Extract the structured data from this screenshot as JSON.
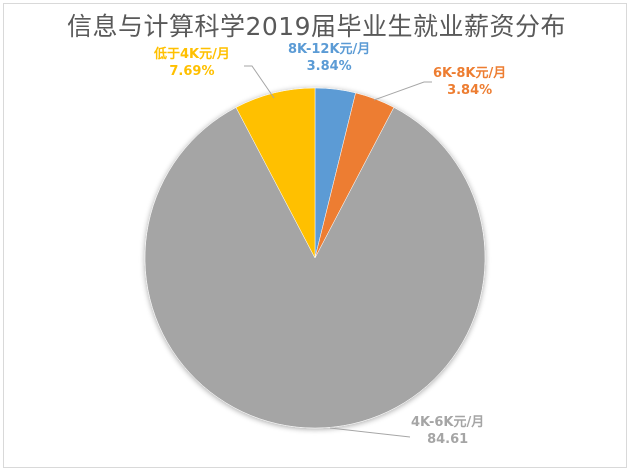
{
  "chart_data": {
    "type": "pie",
    "title": "信息与计算科学2019届毕业生就业薪资分布",
    "categories": [
      "8K-12K元/月",
      "6K-8K元/月",
      "4K-6K元/月",
      "低于4K元/月"
    ],
    "values": [
      3.84,
      3.84,
      84.61,
      7.69
    ],
    "value_labels": [
      "3.84%",
      "3.84%",
      "84.61",
      "7.69%"
    ],
    "colors": [
      "#5B9BD5",
      "#ED7D31",
      "#A5A5A5",
      "#FFC000"
    ],
    "start_angle": "12 o'clock, clockwise",
    "legend": "none (data labels with leader lines)"
  },
  "labels": {
    "blue": {
      "name": "8K-12K元/月",
      "value": "3.84%"
    },
    "orange": {
      "name": "6K-8K元/月",
      "value": "3.84%"
    },
    "gray": {
      "name": "4K-6K元/月",
      "value": "84.61"
    },
    "yellow": {
      "name": "低于4K元/月",
      "value": "7.69%"
    }
  }
}
